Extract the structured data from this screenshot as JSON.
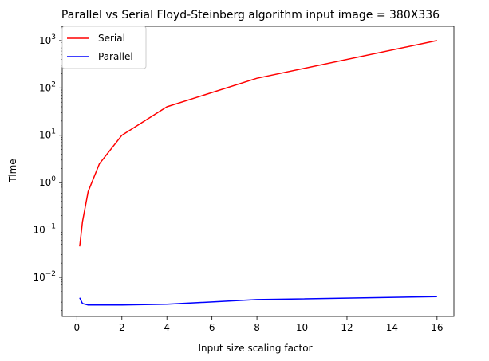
{
  "chart_data": {
    "type": "line",
    "title": "Parallel vs Serial Floyd-Steinberg algorithm input image = 380X336",
    "xlabel": "Input size scaling factor",
    "ylabel": "Time",
    "xlim": [
      -0.65,
      16.75
    ],
    "ylim": [
      0.0015,
      2000
    ],
    "yscale": "log",
    "xticks": [
      0,
      2,
      4,
      6,
      8,
      10,
      12,
      14,
      16
    ],
    "yticks": [
      {
        "value": 0.01,
        "base": "10",
        "exp": "−2"
      },
      {
        "value": 0.1,
        "base": "10",
        "exp": "−1"
      },
      {
        "value": 1,
        "base": "10",
        "exp": "0"
      },
      {
        "value": 10,
        "base": "10",
        "exp": "1"
      },
      {
        "value": 100,
        "base": "10",
        "exp": "2"
      },
      {
        "value": 1000,
        "base": "10",
        "exp": "3"
      }
    ],
    "grid": false,
    "legend_position": "top-left",
    "series": [
      {
        "name": "Serial",
        "color": "#ff0000",
        "x": [
          0.125,
          0.25,
          0.5,
          1,
          2,
          4,
          8,
          16
        ],
        "y": [
          0.045,
          0.15,
          0.65,
          2.5,
          10,
          40,
          160,
          1000
        ]
      },
      {
        "name": "Parallel",
        "color": "#0000ff",
        "x": [
          0.125,
          0.25,
          0.5,
          1,
          2,
          4,
          8,
          16
        ],
        "y": [
          0.0037,
          0.0028,
          0.0026,
          0.0026,
          0.0026,
          0.0027,
          0.0034,
          0.0039
        ]
      }
    ]
  }
}
